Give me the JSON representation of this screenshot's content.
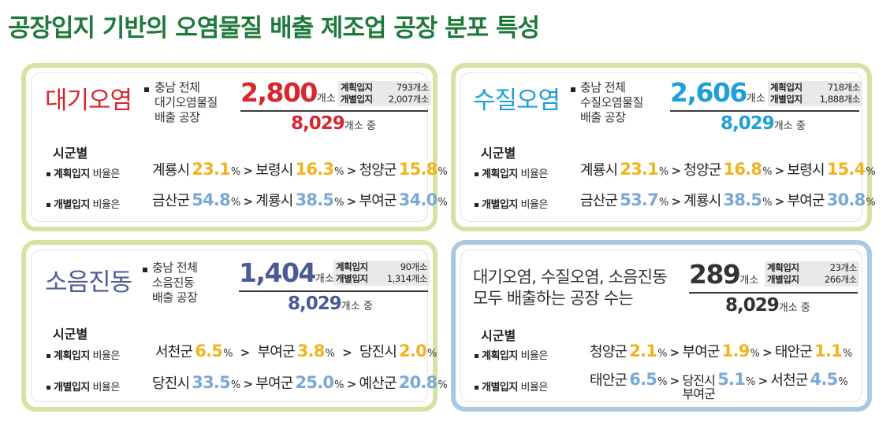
{
  "title": "공장입지 기반의 오염물질 배출 제조업 공장 분포 특성",
  "shared": {
    "planned_label": "계획입지",
    "individual_label": "개별입지",
    "region_heading": "시군별",
    "planned_ratio_label": "계획입지",
    "individual_ratio_label": "개별입지",
    "ratio_suffix": " 비율은",
    "unit_count": "개소",
    "unit_pct": "%",
    "total_num": "8,029",
    "total_suffix": "개소 중"
  },
  "panels": {
    "air": {
      "title": "대기오염",
      "desc": [
        "충남 전체",
        "대기오염물질",
        "배출 공장"
      ],
      "count": "2,800",
      "planned": "793개소",
      "individual": "2,007개소",
      "planned_rows": [
        {
          "region": "계룡시",
          "pct": "23.1"
        },
        {
          "region": "보령시",
          "pct": "16.3"
        },
        {
          "region": "청양군",
          "pct": "15.8"
        }
      ],
      "individual_rows": [
        {
          "region": "금산군",
          "pct": "54.8"
        },
        {
          "region": "계룡시",
          "pct": "38.5"
        },
        {
          "region": "부여군",
          "pct": "34.0"
        }
      ]
    },
    "water": {
      "title": "수질오염",
      "desc": [
        "충남 전체",
        "수질오염물질",
        "배출 공장"
      ],
      "count": "2,606",
      "planned": "718개소",
      "individual": "1,888개소",
      "planned_rows": [
        {
          "region": "계룡시",
          "pct": "23.1"
        },
        {
          "region": "청양군",
          "pct": "16.8"
        },
        {
          "region": "보령시",
          "pct": "15.4"
        }
      ],
      "individual_rows": [
        {
          "region": "금산군",
          "pct": "53.7"
        },
        {
          "region": "계룡시",
          "pct": "38.5"
        },
        {
          "region": "부여군",
          "pct": "30.8"
        }
      ]
    },
    "noise": {
      "title": "소음진동",
      "desc": [
        "충남 전체",
        "소음진동",
        "배출 공장"
      ],
      "count": "1,404",
      "planned": "90개소",
      "individual": "1,314개소",
      "planned_rows": [
        {
          "region": "서천군",
          "pct": "6.5"
        },
        {
          "region": "부여군",
          "pct": "3.8"
        },
        {
          "region": "당진시",
          "pct": "2.0"
        }
      ],
      "individual_rows": [
        {
          "region": "당진시",
          "pct": "33.5"
        },
        {
          "region": "부여군",
          "pct": "25.0"
        },
        {
          "region": "예산군",
          "pct": "20.8"
        }
      ]
    },
    "all": {
      "desc": [
        "대기오염, 수질오염, 소음진동",
        "모두 배출하는 공장 수는"
      ],
      "count": "289",
      "planned": "23개소",
      "individual": "266개소",
      "planned_rows": [
        {
          "region": "청양군",
          "pct": "2.1"
        },
        {
          "region": "부여군",
          "pct": "1.9"
        },
        {
          "region": "태안군",
          "pct": "1.1"
        }
      ],
      "individual_rows": [
        {
          "region": "태안군",
          "pct": "6.5"
        },
        {
          "region_line1": "당진시",
          "region_line2": "부여군",
          "pct": "5.1"
        },
        {
          "region": "서천군",
          "pct": "4.5"
        }
      ]
    }
  },
  "colors": {
    "title_green": "#1e7a3a",
    "air_red": "#d8262e",
    "water_teal": "#1f9fd6",
    "noise_navy": "#4a5a94",
    "planned_yellow": "#f2b21c",
    "individual_blue": "#7aa9d6"
  }
}
